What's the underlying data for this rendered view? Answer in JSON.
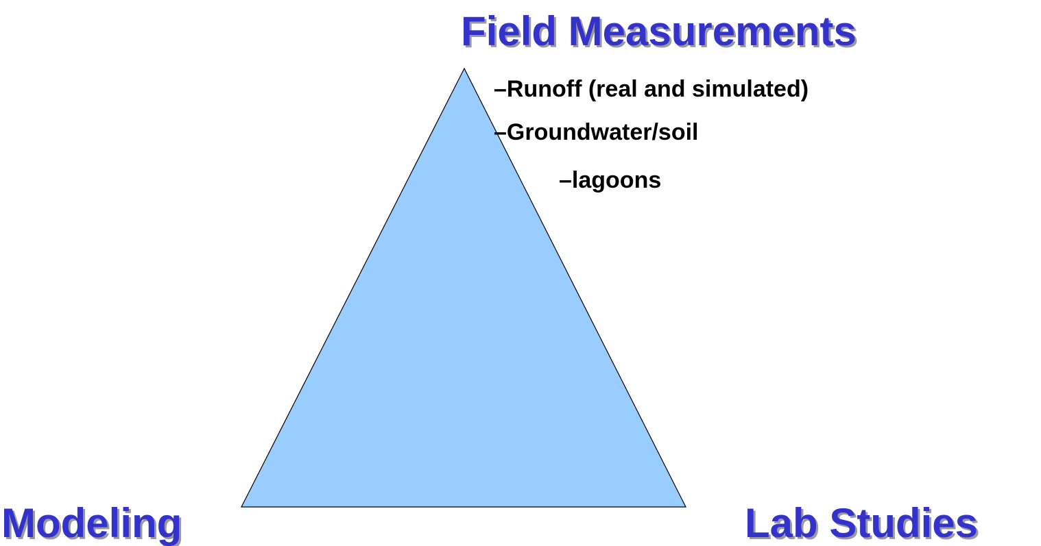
{
  "diagram": {
    "top_label": "Field Measurements",
    "left_label": "Modeling",
    "right_label": "Lab Studies",
    "items": [
      "–Runoff (real and simulated)",
      "–Groundwater/soil",
      "–lagoons"
    ]
  }
}
